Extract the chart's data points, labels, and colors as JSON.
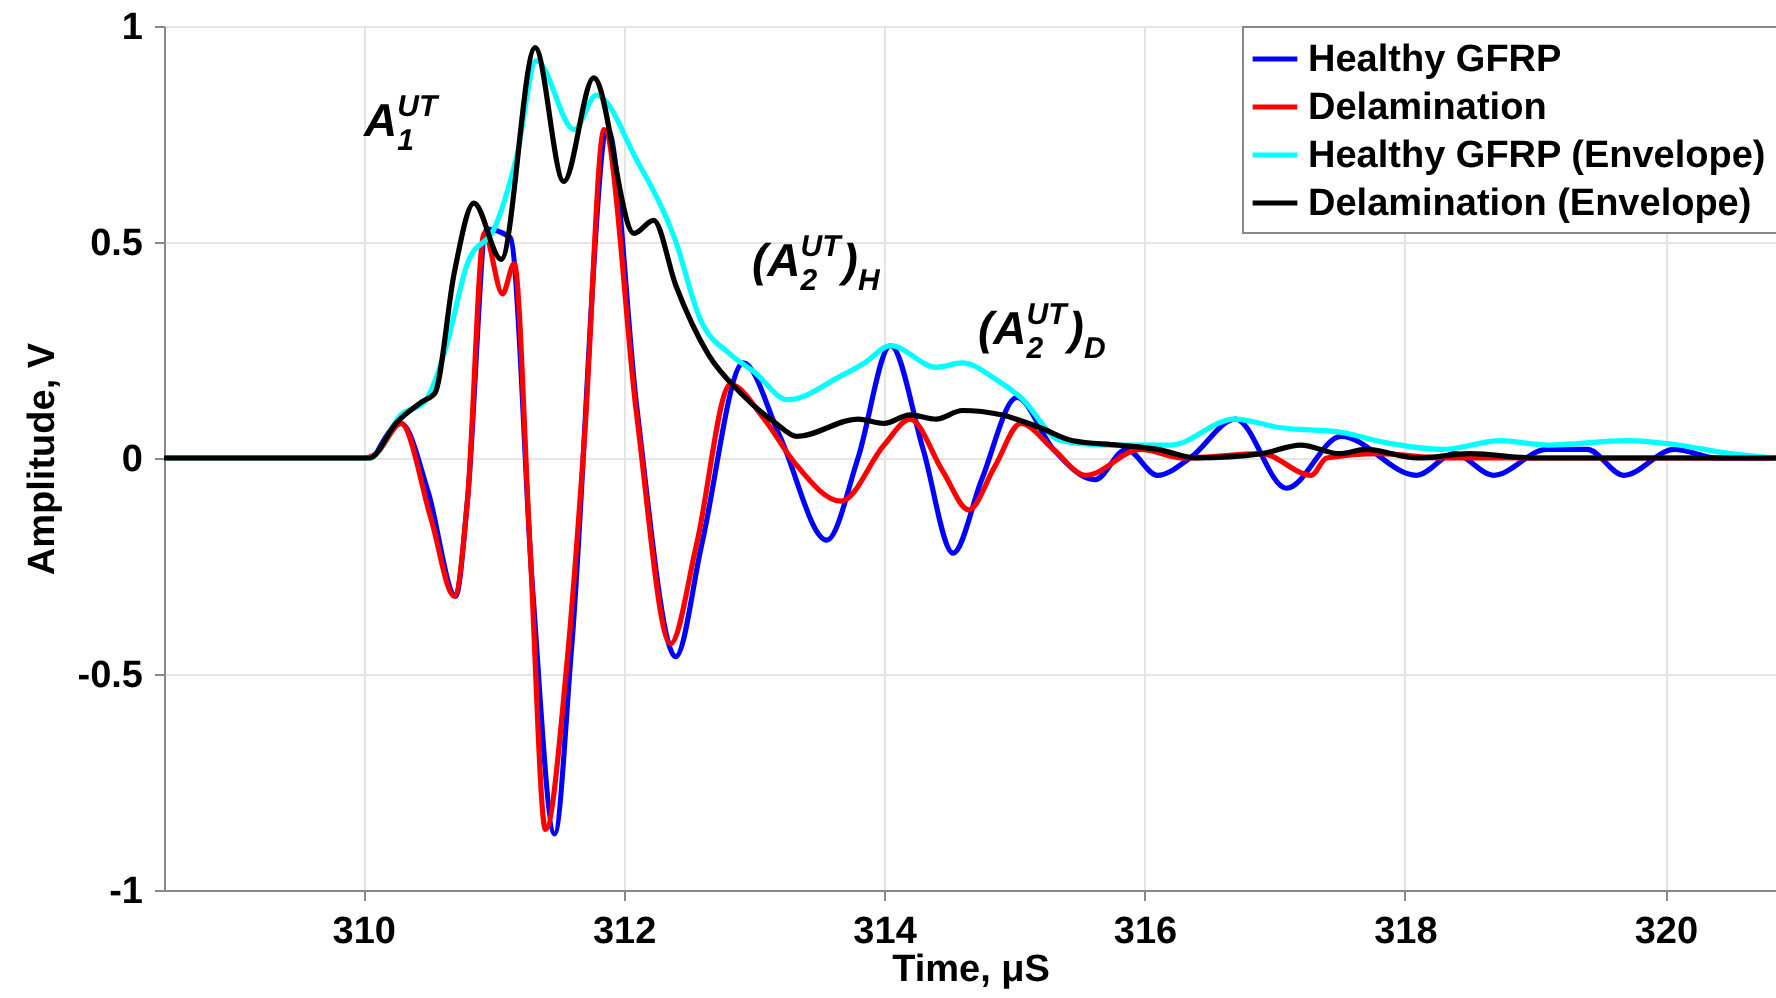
{
  "chart_data": {
    "type": "line",
    "xlabel": "Time, μS",
    "ylabel": "Amplitude, V",
    "xlim": [
      308.47,
      320.85
    ],
    "xticks": [
      310,
      312,
      314,
      316,
      318,
      320
    ],
    "ylim": [
      -1,
      1
    ],
    "yticks": [
      -1,
      -0.5,
      0,
      0.5,
      1
    ],
    "grid": true,
    "legend": "top right",
    "line_style": "solid",
    "annotations": [
      "A$^{UT}$$_{1}$",
      "(A$^{UT}$$_{2}$)$_{H}$",
      "(A$^{UT}$$_{2}$)$_{D}$"
    ],
    "series": [
      {
        "name": "Healthy GFRP",
        "color": "#0000ff",
        "x": [
          310.1,
          310.29,
          310.5,
          310.71,
          310.8,
          310.95,
          311.13,
          311.3,
          311.47,
          311.6,
          311.88,
          312.1,
          312.4,
          312.6,
          312.92,
          313.2,
          313.56,
          313.8,
          314.05,
          314.3,
          314.53,
          314.75,
          315.02,
          315.3,
          315.62,
          315.86,
          316.1,
          316.35,
          316.7,
          317.09,
          317.51,
          318.09,
          318.38,
          318.68,
          319.09,
          319.4,
          319.68,
          320.07,
          320.4,
          320.85
        ],
        "values": [
          0.01,
          0.08,
          -0.08,
          -0.32,
          -0.1,
          0.53,
          0.51,
          -0.3,
          -0.87,
          -0.44,
          0.76,
          0.12,
          -0.46,
          -0.2,
          0.22,
          0.05,
          -0.19,
          0,
          0.26,
          0.02,
          -0.22,
          -0.05,
          0.14,
          0.02,
          -0.05,
          0.02,
          -0.04,
          0,
          0.09,
          -0.07,
          0.05,
          -0.04,
          0.01,
          -0.04,
          0.02,
          0.02,
          -0.04,
          0.02,
          0,
          0
        ]
      },
      {
        "name": "Delamination",
        "color": "#ff0000",
        "x": [
          308.47,
          310.0,
          310.1,
          310.29,
          310.52,
          310.7,
          310.8,
          310.93,
          311.07,
          311.16,
          311.28,
          311.4,
          311.56,
          311.7,
          311.85,
          312.1,
          312.36,
          312.56,
          312.82,
          313.08,
          313.31,
          313.67,
          314.0,
          314.2,
          314.45,
          314.65,
          314.85,
          315.05,
          315.3,
          315.55,
          315.97,
          316.3,
          316.9,
          317.28,
          317.4,
          317.8,
          318.3,
          320.85
        ],
        "values": [
          0,
          0,
          0.01,
          0.08,
          -0.14,
          -0.32,
          -0.1,
          0.52,
          0.38,
          0.45,
          -0.2,
          -0.86,
          -0.49,
          0.05,
          0.76,
          0.1,
          -0.43,
          -0.2,
          0.17,
          0.09,
          -0.01,
          -0.1,
          0.03,
          0.09,
          -0.03,
          -0.12,
          -0.02,
          0.08,
          0.02,
          -0.04,
          0.02,
          0,
          0.01,
          -0.04,
          0,
          0.01,
          0,
          0
        ]
      },
      {
        "name": "Healthy GFRP (Envelope)",
        "color": "#00ffff",
        "x": [
          308.47,
          310.05,
          310.29,
          310.47,
          310.63,
          310.8,
          311.02,
          311.18,
          311.33,
          311.62,
          311.79,
          312.1,
          312.39,
          312.59,
          312.82,
          313.0,
          313.26,
          313.67,
          313.85,
          314.05,
          314.4,
          314.6,
          314.87,
          315.05,
          315.36,
          315.7,
          316.2,
          316.69,
          317.05,
          317.5,
          317.86,
          318.3,
          318.73,
          319.1,
          319.7,
          320.1,
          320.5,
          320.85
        ],
        "values": [
          0,
          0,
          0.1,
          0.13,
          0.25,
          0.45,
          0.54,
          0.7,
          0.92,
          0.76,
          0.84,
          0.69,
          0.51,
          0.32,
          0.24,
          0.2,
          0.135,
          0.19,
          0.22,
          0.26,
          0.21,
          0.22,
          0.18,
          0.14,
          0.04,
          0.03,
          0.03,
          0.09,
          0.07,
          0.06,
          0.035,
          0.02,
          0.04,
          0.03,
          0.04,
          0.03,
          0.01,
          0
        ]
      },
      {
        "name": "Delamination (Envelope)",
        "color": "#000000",
        "x": [
          308.47,
          310.05,
          310.25,
          310.45,
          310.55,
          310.7,
          310.85,
          311.06,
          311.32,
          311.54,
          311.77,
          312.08,
          312.23,
          312.4,
          312.65,
          312.9,
          313.17,
          313.33,
          313.8,
          314.0,
          314.2,
          314.4,
          314.6,
          314.9,
          315.2,
          315.45,
          315.8,
          316.1,
          316.4,
          316.9,
          317.2,
          317.5,
          317.7,
          318.1,
          318.5,
          319.0,
          320.85
        ],
        "values": [
          0,
          0,
          0.08,
          0.13,
          0.15,
          0.43,
          0.59,
          0.46,
          0.95,
          0.64,
          0.88,
          0.52,
          0.55,
          0.4,
          0.24,
          0.15,
          0.08,
          0.05,
          0.09,
          0.08,
          0.1,
          0.09,
          0.11,
          0.1,
          0.07,
          0.04,
          0.03,
          0.02,
          0,
          0.01,
          0.03,
          0.01,
          0.02,
          0,
          0.01,
          0,
          0
        ]
      }
    ]
  }
}
